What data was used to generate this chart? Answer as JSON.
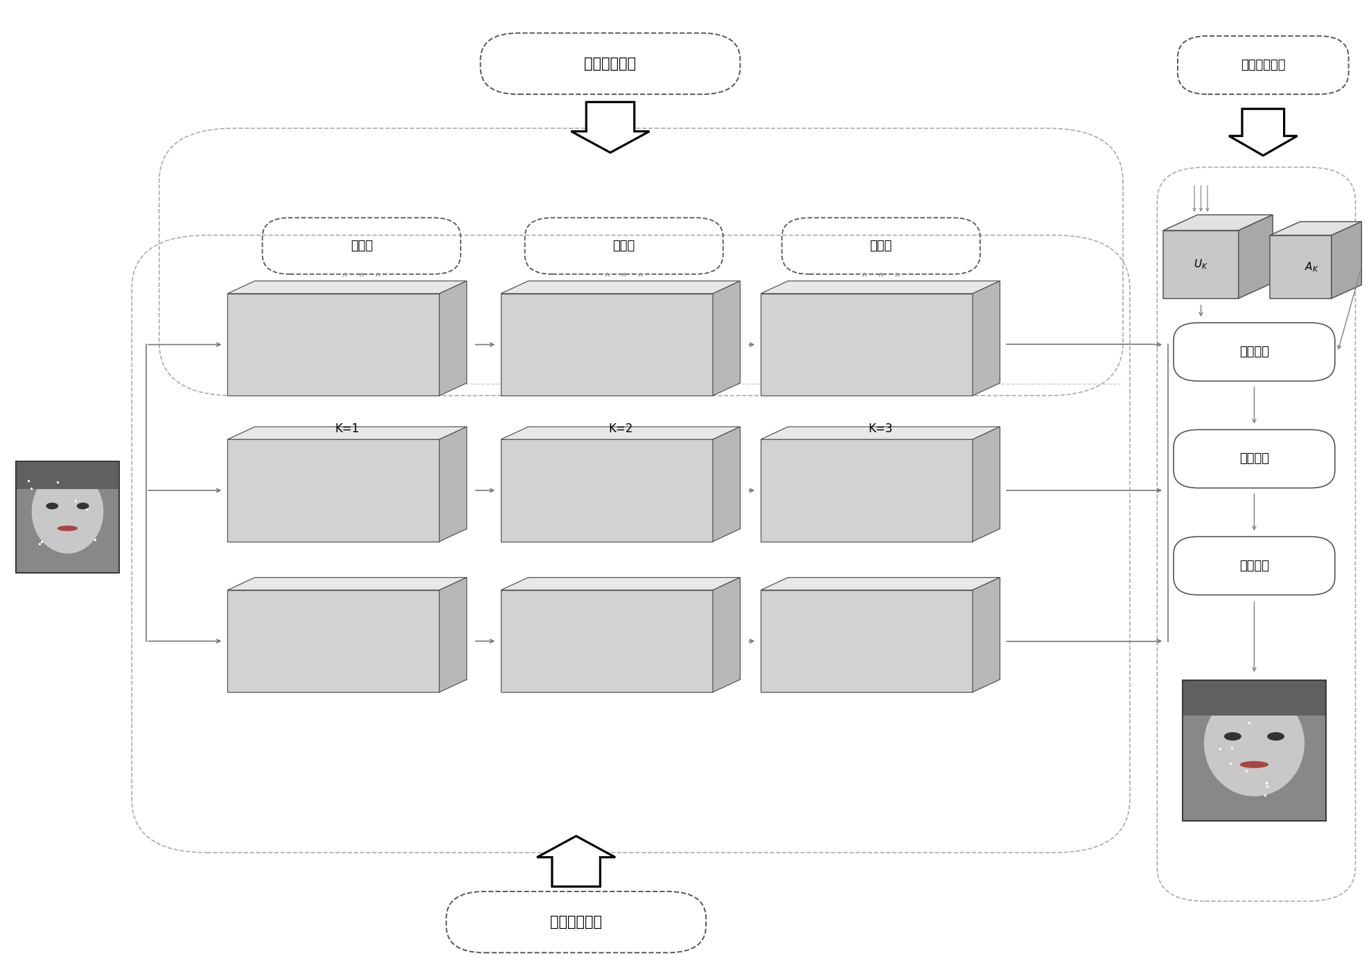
{
  "fig_w": 19.79,
  "fig_h": 14.09,
  "title_top": "特征融合模块",
  "title_bottom": "特征提取模块",
  "title_right": "特征映射模块",
  "fusion_label": "融合块",
  "k_labels": [
    "K=1",
    "K=2",
    "K=3"
  ],
  "right_boxes": [
    "结构映射",
    "特征聚合",
    "回归网络"
  ],
  "uk_label": "$U_K$",
  "ak_label": "$A_K$",
  "tensor_face": "#d2d2d2",
  "tensor_top": "#e8e8e8",
  "tensor_side": "#b8b8b8",
  "cube_face": "#c8c8c8",
  "cube_top": "#e2e2e2",
  "cube_side": "#a8a8a8",
  "line_col": "#888888",
  "dash_col": "#aaaaaa",
  "box_col": "#555555",
  "arrow_col": "#777777"
}
